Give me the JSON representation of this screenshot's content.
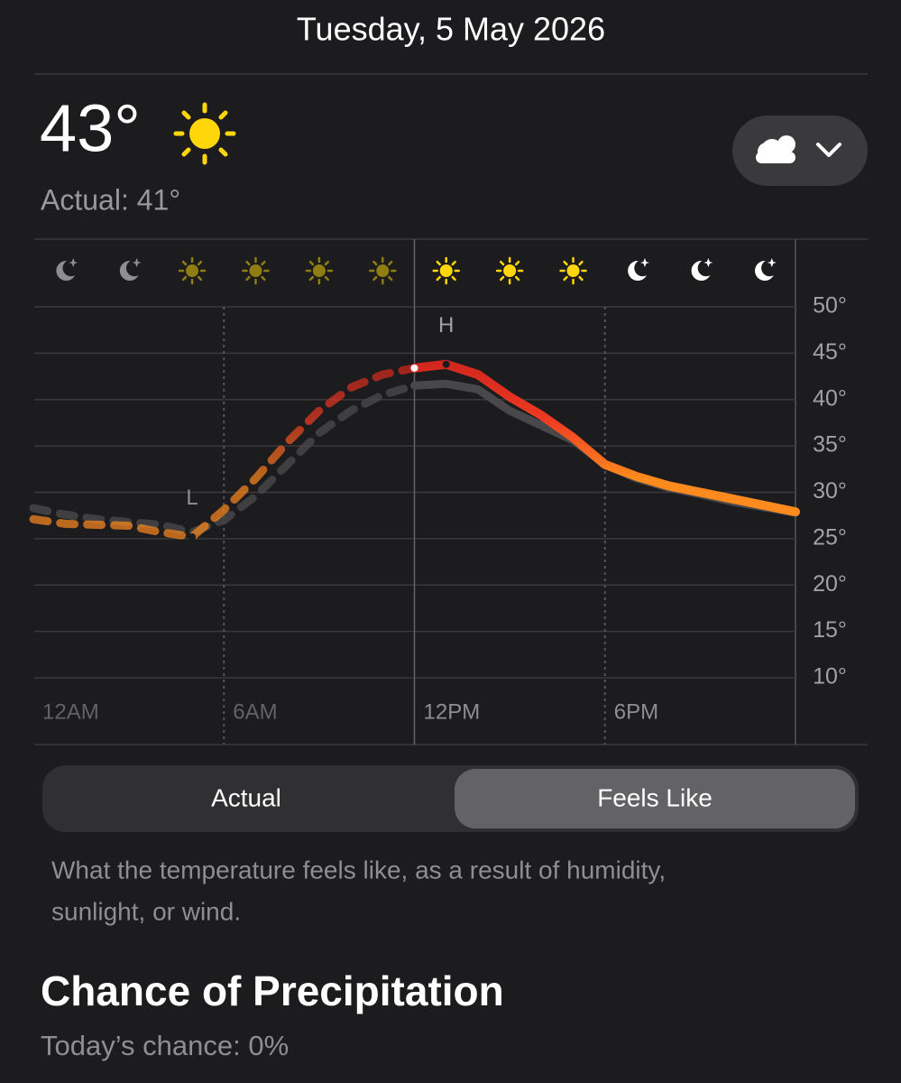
{
  "header": {
    "date": "Tuesday, 5 May 2026"
  },
  "current": {
    "temperature": "43°",
    "actual": "Actual: 41°"
  },
  "chart_data": {
    "type": "line",
    "x": [
      0,
      1,
      2,
      3,
      4,
      5,
      6,
      7,
      8,
      9,
      10,
      11,
      12,
      13,
      14,
      15,
      16,
      17,
      18,
      19,
      20,
      21,
      22,
      23,
      24
    ],
    "series": [
      {
        "name": "Actual",
        "color": "#48484a",
        "values": [
          28.3,
          27.6,
          27.1,
          26.8,
          26.5,
          25.7,
          27,
          29.6,
          33,
          36.4,
          38.8,
          40.5,
          41.5,
          41.7,
          41.1,
          38.8,
          37.2,
          35.6,
          33,
          31.5,
          30.5,
          29.8,
          29,
          28.4,
          27.8
        ]
      },
      {
        "name": "Feels Like",
        "color": "#ff8a1e",
        "values": [
          27.1,
          26.6,
          26.5,
          26.4,
          25.7,
          25.2,
          28.1,
          31.5,
          35.4,
          38.8,
          41.3,
          42.7,
          43.4,
          43.8,
          42.7,
          40.3,
          38.3,
          35.9,
          33,
          31.7,
          30.7,
          30,
          29.3,
          28.6,
          27.9
        ]
      }
    ],
    "xlim": [
      0,
      24
    ],
    "ylim": [
      10,
      50
    ],
    "xticks": [
      {
        "value": 0,
        "label": "12AM"
      },
      {
        "value": 6,
        "label": "6AM"
      },
      {
        "value": 12,
        "label": "12PM"
      },
      {
        "value": 18,
        "label": "6PM"
      }
    ],
    "yticks": [
      {
        "value": 50,
        "label": "50°"
      },
      {
        "value": 45,
        "label": "45°"
      },
      {
        "value": 40,
        "label": "40°"
      },
      {
        "value": 35,
        "label": "35°"
      },
      {
        "value": 30,
        "label": "30°"
      },
      {
        "value": 25,
        "label": "25°"
      },
      {
        "value": 20,
        "label": "20°"
      },
      {
        "value": 15,
        "label": "15°"
      },
      {
        "value": 10,
        "label": "10°"
      }
    ],
    "grid": true,
    "low_label": "L",
    "high_label": "H"
  },
  "toggle": {
    "selected": 1
  },
  "description": [
    "What the temperature feels like, as a result of humidity,",
    "sunlight, or wind."
  ],
  "precipitation": {
    "title": "Chance of Precipitation",
    "subtitle": "Today’s chance: 0%"
  }
}
